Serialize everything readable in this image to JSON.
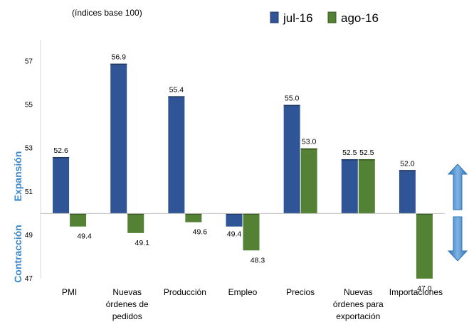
{
  "chart_data": {
    "type": "bar",
    "subtitle": "(índices base 100)",
    "categories": [
      [
        "PMI"
      ],
      [
        "Nuevas",
        "órdenes de",
        "pedidos"
      ],
      [
        "Producción"
      ],
      [
        "Empleo"
      ],
      [
        "Precios"
      ],
      [
        "Nuevas",
        "órdenes para",
        "exportación"
      ],
      [
        "Importaciones"
      ]
    ],
    "baseline": 50,
    "ylim": [
      47,
      58
    ],
    "yticks": [
      47,
      49,
      51,
      53,
      55,
      57
    ],
    "series": [
      {
        "name": "jul-16",
        "color": "#2F5597",
        "values": [
          52.6,
          56.9,
          55.4,
          49.4,
          55.0,
          52.5,
          52.0
        ]
      },
      {
        "name": "ago-16",
        "color": "#548235",
        "values": [
          49.4,
          49.1,
          49.6,
          48.3,
          53.0,
          52.5,
          47.0
        ]
      }
    ],
    "value_labels": [
      [
        "52.6",
        "56.9",
        "55.4",
        "49.4",
        "55.0",
        "52.5",
        "52.0"
      ],
      [
        "49.4",
        "49.1",
        "49.6",
        "48.3",
        "53.0",
        "52.5",
        "47.0"
      ]
    ],
    "side_labels": {
      "top": "Expansión",
      "bottom": "Contracción",
      "color": "#3A87C9"
    },
    "legend_position": "top-right",
    "grid": false
  }
}
